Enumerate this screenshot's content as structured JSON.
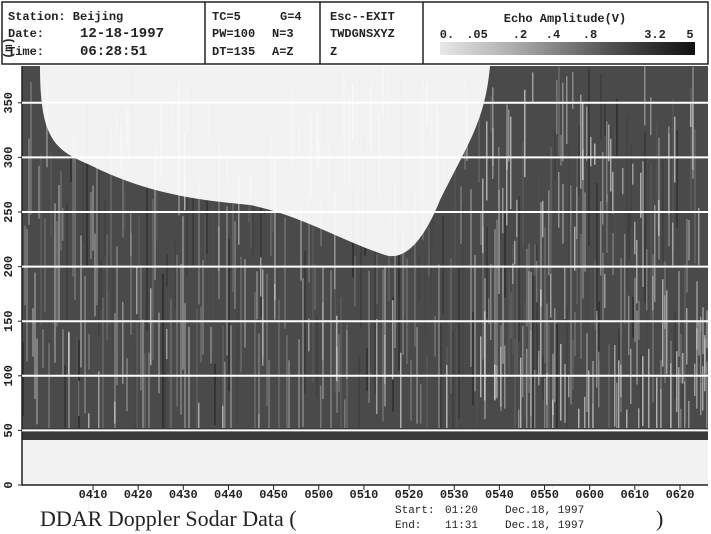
{
  "header": {
    "station": "Station: Beijing",
    "date_label": "Date:",
    "date": "12-18-1997",
    "time_label": "Time:",
    "time": "06:28:51",
    "params": [
      "TC=5",
      "G=4",
      "PW=100",
      "N=3",
      "DT=135",
      "A=Z"
    ],
    "commands": [
      "Esc--EXIT",
      "TWDGNSXYZ",
      "Z"
    ]
  },
  "legend": {
    "title": "Echo Amplitude(V)",
    "labels": [
      "0.",
      ".05",
      ".2",
      ".4",
      ".8",
      "3.2",
      "5"
    ]
  },
  "plot": {
    "y_unit": "(m)",
    "y_labels": [
      "0",
      "50",
      "100",
      "150",
      "200",
      "250",
      "300",
      "350"
    ],
    "x_labels": [
      "0410",
      "0420",
      "0430",
      "0440",
      "0450",
      "0500",
      "0510",
      "0520",
      "0530",
      "0540",
      "0550",
      "0600",
      "0610",
      "0620"
    ]
  },
  "footer": {
    "title": "DDAR Doppler Sodar Data (",
    "start_label": "Start:",
    "start_time": "01:20",
    "start_date": "Dec.18, 1997",
    "end_label": "End:",
    "end_time": "11:31",
    "end_date": "Dec.18, 1997",
    "close": ")"
  }
}
